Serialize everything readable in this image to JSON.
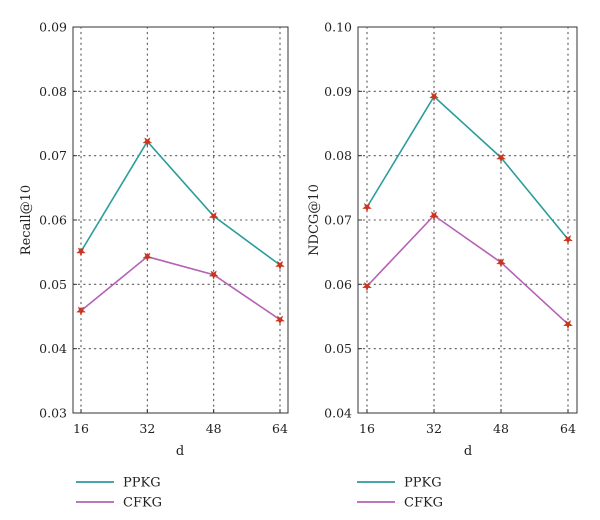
{
  "chart_data": [
    {
      "type": "line",
      "x": [
        16,
        32,
        48,
        64
      ],
      "xticks": [
        "16",
        "32",
        "48",
        "64"
      ],
      "xlabel": "d",
      "ylabel": "Recall@10",
      "ylim": [
        0.03,
        0.09
      ],
      "yticks": [
        "0.03",
        "0.04",
        "0.05",
        "0.06",
        "0.07",
        "0.08",
        "0.09"
      ],
      "grid": true,
      "legend_placement": "below",
      "series": [
        {
          "name": "PPKG",
          "color": "#2a9d9a",
          "marker_color": "#c8361f",
          "values": [
            0.0551,
            0.0722,
            0.0606,
            0.053
          ]
        },
        {
          "name": "CFKG",
          "color": "#b462b4",
          "marker_color": "#c8361f",
          "values": [
            0.0459,
            0.0543,
            0.0515,
            0.0445
          ]
        }
      ]
    },
    {
      "type": "line",
      "x": [
        16,
        32,
        48,
        64
      ],
      "xticks": [
        "16",
        "32",
        "48",
        "64"
      ],
      "xlabel": "d",
      "ylabel": "NDCG@10",
      "ylim": [
        0.04,
        0.1
      ],
      "yticks": [
        "0.04",
        "0.05",
        "0.06",
        "0.07",
        "0.08",
        "0.09",
        "0.10"
      ],
      "grid": true,
      "legend_placement": "below",
      "series": [
        {
          "name": "PPKG",
          "color": "#2a9d9a",
          "marker_color": "#c8361f",
          "values": [
            0.072,
            0.0892,
            0.0797,
            0.067
          ]
        },
        {
          "name": "CFKG",
          "color": "#b462b4",
          "marker_color": "#c8361f",
          "values": [
            0.0597,
            0.0707,
            0.0634,
            0.0538
          ]
        }
      ]
    }
  ]
}
